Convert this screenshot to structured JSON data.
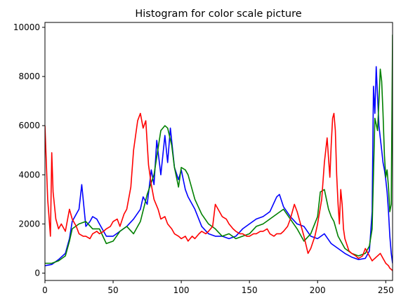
{
  "chart_data": {
    "type": "line",
    "title": "Histogram for color scale picture",
    "xlabel": "",
    "ylabel": "",
    "xlim": [
      0,
      255
    ],
    "ylim": [
      -300,
      10200
    ],
    "xticks": [
      0,
      50,
      100,
      150,
      200,
      250
    ],
    "yticks": [
      0,
      2000,
      4000,
      6000,
      8000,
      10000
    ],
    "grid": false,
    "legend": "none",
    "series": [
      {
        "color": "#0000ff",
        "x": [
          0,
          5,
          10,
          15,
          18,
          20,
          23,
          25,
          27,
          30,
          33,
          35,
          38,
          40,
          45,
          50,
          55,
          60,
          65,
          70,
          72,
          75,
          78,
          80,
          82,
          85,
          88,
          90,
          92,
          95,
          98,
          100,
          103,
          105,
          110,
          115,
          120,
          125,
          130,
          135,
          140,
          145,
          150,
          155,
          160,
          165,
          170,
          172,
          175,
          180,
          185,
          190,
          195,
          200,
          205,
          210,
          215,
          220,
          225,
          230,
          235,
          238,
          240,
          241,
          242,
          243,
          244,
          245,
          246,
          247,
          248,
          249,
          250,
          251,
          252,
          253,
          254,
          255
        ],
        "y": [
          300,
          350,
          550,
          800,
          1400,
          2100,
          2400,
          2600,
          3600,
          1900,
          2100,
          2300,
          2200,
          2000,
          1500,
          1500,
          1700,
          1900,
          2200,
          2600,
          3100,
          2800,
          4200,
          3600,
          5400,
          4000,
          5600,
          4500,
          5900,
          4300,
          3800,
          4200,
          3400,
          3100,
          2600,
          1900,
          1600,
          1500,
          1500,
          1400,
          1500,
          1800,
          2000,
          2200,
          2300,
          2500,
          3100,
          3200,
          2700,
          2300,
          2000,
          1900,
          1500,
          1400,
          1600,
          1200,
          1000,
          800,
          650,
          550,
          600,
          900,
          2500,
          7600,
          6500,
          8400,
          7200,
          6000,
          5500,
          5000,
          4500,
          4200,
          3800,
          3300,
          2500,
          1500,
          800,
          400
        ]
      },
      {
        "color": "#008000",
        "x": [
          0,
          5,
          10,
          15,
          18,
          20,
          25,
          30,
          35,
          40,
          45,
          50,
          55,
          60,
          65,
          70,
          75,
          80,
          85,
          88,
          90,
          93,
          95,
          98,
          100,
          103,
          105,
          110,
          115,
          120,
          125,
          130,
          135,
          140,
          145,
          150,
          155,
          160,
          165,
          170,
          175,
          180,
          185,
          190,
          195,
          200,
          202,
          205,
          208,
          210,
          212,
          215,
          220,
          225,
          230,
          235,
          238,
          240,
          242,
          244,
          245,
          246,
          247,
          248,
          249,
          250,
          251,
          252,
          253,
          254,
          255
        ],
        "y": [
          400,
          400,
          500,
          700,
          1300,
          1800,
          2000,
          2100,
          1800,
          1800,
          1200,
          1300,
          1700,
          1900,
          1600,
          2100,
          3200,
          4000,
          5800,
          6000,
          5900,
          5200,
          4300,
          3500,
          4300,
          4200,
          4000,
          3000,
          2400,
          2000,
          1800,
          1500,
          1600,
          1400,
          1500,
          1600,
          1900,
          2000,
          2200,
          2400,
          2600,
          2200,
          1800,
          1300,
          1600,
          2300,
          3300,
          3400,
          2600,
          2300,
          2100,
          1500,
          1000,
          800,
          700,
          800,
          1100,
          1800,
          6300,
          5800,
          7000,
          8300,
          7800,
          6500,
          4800,
          3900,
          4200,
          3500,
          2500,
          2800,
          9700
        ]
      },
      {
        "color": "#ff0000",
        "x": [
          0,
          2,
          4,
          5,
          6,
          8,
          10,
          12,
          15,
          18,
          20,
          23,
          25,
          28,
          30,
          33,
          35,
          38,
          40,
          43,
          45,
          48,
          50,
          53,
          55,
          58,
          60,
          63,
          65,
          68,
          70,
          72,
          74,
          76,
          78,
          80,
          83,
          85,
          88,
          90,
          93,
          95,
          98,
          100,
          103,
          105,
          108,
          110,
          113,
          115,
          118,
          120,
          123,
          125,
          128,
          130,
          133,
          135,
          138,
          140,
          143,
          145,
          148,
          150,
          153,
          155,
          158,
          160,
          163,
          165,
          168,
          170,
          173,
          175,
          178,
          180,
          183,
          185,
          188,
          190,
          193,
          195,
          198,
          200,
          203,
          205,
          207,
          209,
          210,
          211,
          212,
          213,
          214,
          215,
          216,
          217,
          218,
          219,
          220,
          223,
          225,
          228,
          230,
          233,
          235,
          238,
          240,
          241,
          242,
          243,
          244,
          245,
          246,
          247,
          248,
          249,
          250,
          251,
          252,
          253,
          254,
          255
        ],
        "y": [
          6000,
          3000,
          1500,
          4900,
          3300,
          2200,
          1800,
          2000,
          1700,
          2600,
          2200,
          1900,
          1600,
          1500,
          1500,
          1400,
          1600,
          1700,
          1600,
          1700,
          1800,
          1900,
          2100,
          2200,
          1900,
          2400,
          2600,
          3500,
          5000,
          6200,
          6500,
          5900,
          6200,
          4400,
          3600,
          3000,
          2600,
          2200,
          2300,
          2000,
          1800,
          1600,
          1500,
          1400,
          1500,
          1300,
          1500,
          1400,
          1600,
          1700,
          1600,
          1700,
          1900,
          2800,
          2500,
          2300,
          2200,
          2000,
          1800,
          1700,
          1600,
          1600,
          1500,
          1500,
          1600,
          1600,
          1700,
          1700,
          1800,
          1600,
          1500,
          1600,
          1600,
          1700,
          1900,
          2200,
          2800,
          2500,
          1900,
          1500,
          800,
          1000,
          1500,
          2000,
          3000,
          4500,
          5500,
          3900,
          5200,
          6300,
          6500,
          5800,
          4000,
          2800,
          2000,
          3400,
          2800,
          1800,
          1400,
          900,
          800,
          700,
          600,
          700,
          1000,
          700,
          500,
          550,
          600,
          650,
          700,
          750,
          800,
          700,
          600,
          500,
          400,
          350,
          300,
          200,
          150,
          100
        ]
      }
    ]
  }
}
